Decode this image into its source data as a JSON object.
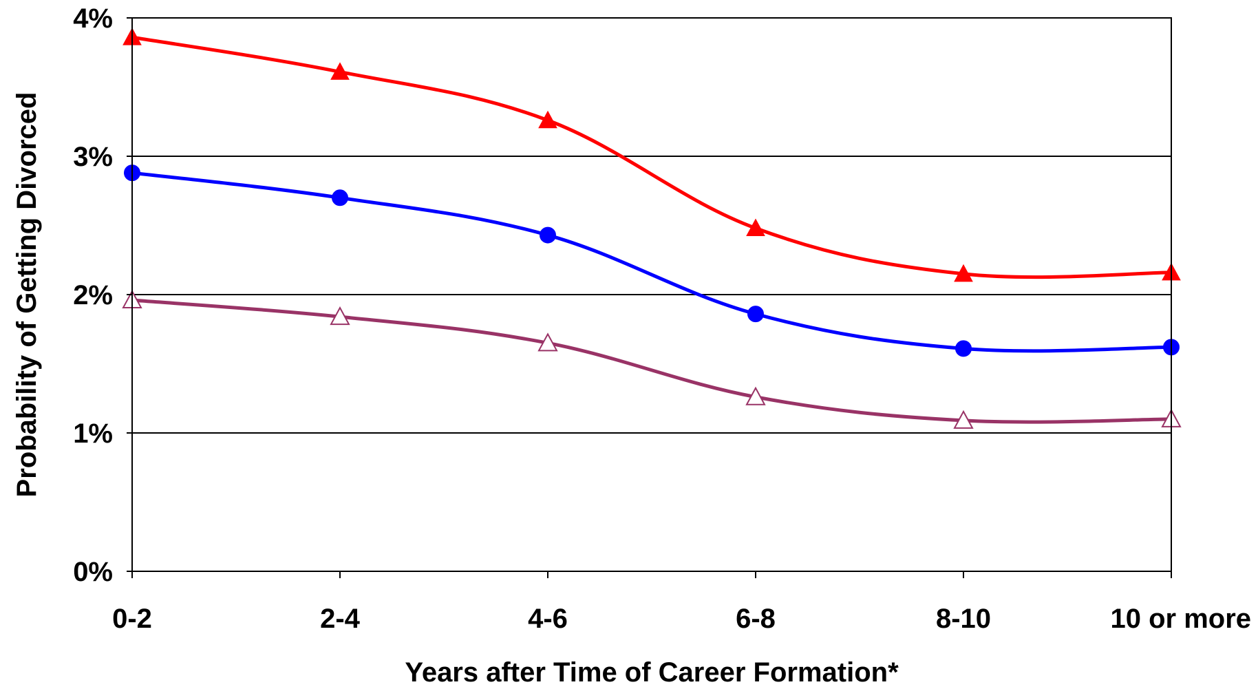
{
  "chart_data": {
    "type": "line",
    "title": "",
    "xlabel": "Years after Time of Career Formation*",
    "ylabel": "Probability of Getting Divorced",
    "categories": [
      "0-2",
      "2-4",
      "4-6",
      "6-8",
      "8-10",
      "10 or more"
    ],
    "y_ticks": [
      0,
      1,
      2,
      3,
      4
    ],
    "y_tick_labels": [
      "0%",
      "1%",
      "2%",
      "3%",
      "4%"
    ],
    "ylim": [
      0,
      4
    ],
    "y_unit": "%",
    "grid": "horizontal",
    "legend": "none",
    "series": [
      {
        "color": "#ff0000",
        "marker": "filled-triangle",
        "values": [
          3.86,
          3.61,
          3.26,
          2.48,
          2.15,
          2.16
        ]
      },
      {
        "color": "#0000ff",
        "marker": "filled-circle",
        "values": [
          2.88,
          2.7,
          2.43,
          1.86,
          1.61,
          1.62
        ]
      },
      {
        "color": "#993366",
        "marker": "hollow-triangle",
        "values": [
          1.96,
          1.84,
          1.65,
          1.26,
          1.09,
          1.1
        ]
      }
    ]
  }
}
